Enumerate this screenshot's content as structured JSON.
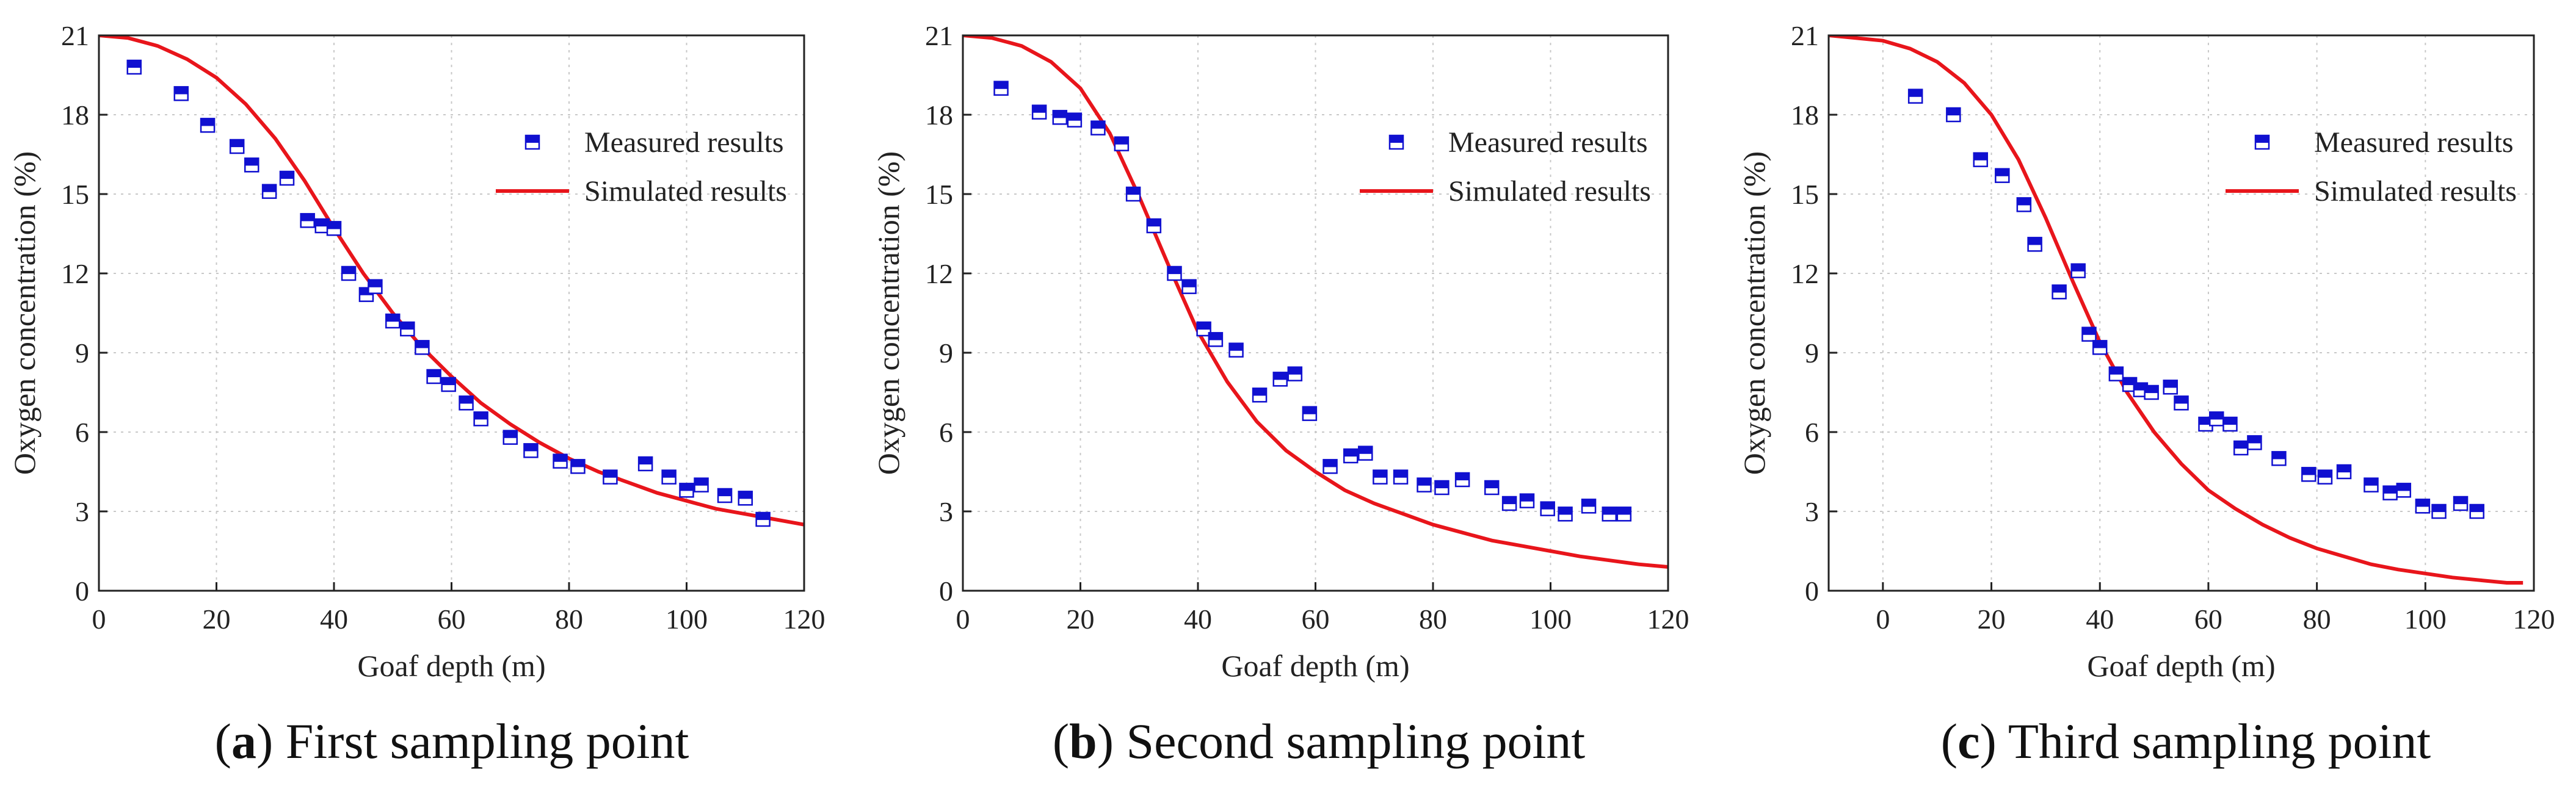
{
  "chart_data": [
    {
      "type": "line",
      "panel": "a",
      "caption_letter": "a",
      "caption_text": " First sampling point",
      "xlabel": "Goaf depth (m)",
      "ylabel": "Oxygen concentration (%)",
      "xlim": [
        0,
        120
      ],
      "ylim": [
        0,
        21
      ],
      "xticks": [
        0,
        20,
        40,
        60,
        80,
        100,
        120
      ],
      "yticks": [
        0,
        3,
        6,
        9,
        12,
        15,
        18,
        21
      ],
      "grid": true,
      "legend_placement": "top-right",
      "series": [
        {
          "name": "Measured results",
          "kind": "scatter",
          "color": "#1010d0",
          "x": [
            6,
            14,
            18.5,
            23.5,
            26,
            29,
            32,
            35.5,
            38,
            40,
            42.5,
            45.5,
            47,
            50,
            52.5,
            55,
            57,
            59.5,
            62.5,
            65,
            70,
            73.5,
            78.5,
            81.5,
            87,
            93,
            97,
            100,
            102.5,
            106.5,
            110,
            113
          ],
          "y": [
            19.8,
            18.8,
            17.6,
            16.8,
            16.1,
            15.1,
            15.6,
            14.0,
            13.8,
            13.7,
            12.0,
            11.2,
            11.5,
            10.2,
            9.9,
            9.2,
            8.1,
            7.8,
            7.1,
            6.5,
            5.8,
            5.3,
            4.9,
            4.7,
            4.3,
            4.8,
            4.3,
            3.8,
            4.0,
            3.6,
            3.5,
            2.7
          ]
        },
        {
          "name": "Simulated results",
          "kind": "line",
          "color": "#e8151b",
          "x": [
            0,
            5,
            10,
            15,
            20,
            25,
            30,
            35,
            40,
            45,
            50,
            55,
            60,
            65,
            70,
            75,
            80,
            85,
            90,
            95,
            100,
            105,
            110,
            115,
            120
          ],
          "y": [
            21.0,
            20.9,
            20.6,
            20.1,
            19.4,
            18.4,
            17.1,
            15.5,
            13.7,
            12.0,
            10.5,
            9.2,
            8.1,
            7.1,
            6.3,
            5.6,
            5.0,
            4.5,
            4.1,
            3.7,
            3.4,
            3.1,
            2.9,
            2.7,
            2.5
          ]
        }
      ]
    },
    {
      "type": "line",
      "panel": "b",
      "caption_letter": "b",
      "caption_text": " Second sampling point",
      "xlabel": "Goaf depth (m)",
      "ylabel": "Oxygen concentration (%)",
      "xlim": [
        0,
        120
      ],
      "ylim": [
        0,
        21
      ],
      "xticks": [
        0,
        20,
        40,
        60,
        80,
        100,
        120
      ],
      "yticks": [
        0,
        3,
        6,
        9,
        12,
        15,
        18,
        21
      ],
      "grid": true,
      "legend_placement": "top-right",
      "series": [
        {
          "name": "Measured results",
          "kind": "scatter",
          "color": "#1010d0",
          "x": [
            6.5,
            13,
            16.5,
            19,
            23,
            27,
            29,
            32.5,
            36,
            38.5,
            41,
            43,
            46.5,
            50.5,
            54,
            56.5,
            59,
            62.5,
            66,
            68.5,
            71,
            74.5,
            78.5,
            81.5,
            85,
            90,
            93,
            96,
            99.5,
            102.5,
            106.5,
            110,
            112.5
          ],
          "y": [
            19.0,
            18.1,
            17.9,
            17.8,
            17.5,
            16.9,
            15.0,
            13.8,
            12.0,
            11.5,
            9.9,
            9.5,
            9.1,
            7.4,
            8.0,
            8.2,
            6.7,
            4.7,
            5.1,
            5.2,
            4.3,
            4.3,
            4.0,
            3.9,
            4.2,
            3.9,
            3.3,
            3.4,
            3.1,
            2.9,
            3.2,
            2.9,
            2.9
          ]
        },
        {
          "name": "Simulated results",
          "kind": "line",
          "color": "#e8151b",
          "x": [
            0,
            5,
            10,
            15,
            20,
            25,
            30,
            35,
            40,
            45,
            50,
            55,
            60,
            65,
            70,
            75,
            80,
            85,
            90,
            95,
            100,
            105,
            110,
            115,
            120
          ],
          "y": [
            21.0,
            20.9,
            20.6,
            20.0,
            19.0,
            17.3,
            14.9,
            12.3,
            9.8,
            7.9,
            6.4,
            5.3,
            4.5,
            3.8,
            3.3,
            2.9,
            2.5,
            2.2,
            1.9,
            1.7,
            1.5,
            1.3,
            1.15,
            1.0,
            0.9
          ]
        }
      ]
    },
    {
      "type": "line",
      "panel": "c",
      "caption_letter": "c",
      "caption_text": " Third sampling point",
      "xlabel": "Goaf depth (m)",
      "ylabel": "Oxygen concentration (%)",
      "xlim": [
        -10,
        120
      ],
      "ylim": [
        0,
        21
      ],
      "xticks": [
        0,
        20,
        40,
        60,
        80,
        100,
        120
      ],
      "yticks": [
        0,
        3,
        6,
        9,
        12,
        15,
        18,
        21
      ],
      "grid": true,
      "legend_placement": "top-right",
      "series": [
        {
          "name": "Measured results",
          "kind": "scatter",
          "color": "#1010d0",
          "x": [
            6,
            13,
            18,
            22,
            26,
            28,
            32.5,
            36,
            38,
            40,
            43,
            45.5,
            47.5,
            49.5,
            53,
            55,
            59.5,
            61.5,
            64,
            66,
            68.5,
            73,
            78.5,
            81.5,
            85,
            90,
            93.5,
            96,
            99.5,
            102.5,
            106.5,
            109.5
          ],
          "y": [
            18.7,
            18.0,
            16.3,
            15.7,
            14.6,
            13.1,
            11.3,
            12.1,
            9.7,
            9.2,
            8.2,
            7.8,
            7.6,
            7.5,
            7.7,
            7.1,
            6.3,
            6.5,
            6.3,
            5.4,
            5.6,
            5.0,
            4.4,
            4.3,
            4.5,
            4.0,
            3.7,
            3.8,
            3.2,
            3.0,
            3.3,
            3.0
          ]
        },
        {
          "name": "Simulated results",
          "kind": "line",
          "color": "#e8151b",
          "x": [
            -10,
            -5,
            0,
            5,
            10,
            15,
            20,
            25,
            30,
            35,
            40,
            45,
            50,
            55,
            60,
            65,
            70,
            75,
            80,
            85,
            90,
            95,
            100,
            105,
            110,
            115,
            118
          ],
          "y": [
            21.0,
            20.9,
            20.8,
            20.5,
            20.0,
            19.2,
            18.0,
            16.3,
            14.1,
            11.7,
            9.4,
            7.5,
            6.0,
            4.8,
            3.8,
            3.1,
            2.5,
            2.0,
            1.6,
            1.3,
            1.0,
            0.8,
            0.65,
            0.5,
            0.4,
            0.3,
            0.3
          ]
        }
      ]
    }
  ]
}
